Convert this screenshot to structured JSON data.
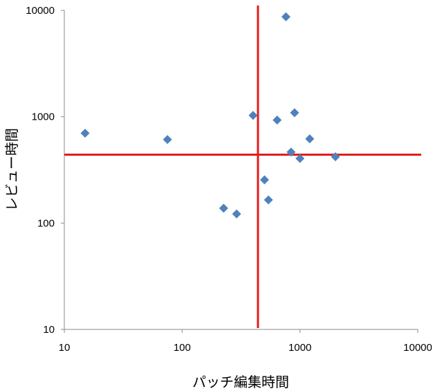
{
  "chart_data": {
    "type": "scatter",
    "xlabel": "パッチ編集時間",
    "ylabel": "レビュー時間",
    "x_scale": "log",
    "y_scale": "log",
    "xlim": [
      10,
      10000
    ],
    "ylim": [
      10,
      10000
    ],
    "x_ticks": [
      "10",
      "100",
      "1000",
      "10000"
    ],
    "y_ticks": [
      "10",
      "100",
      "1000",
      "10000"
    ],
    "grid": false,
    "marker": "diamond",
    "marker_color": "#4f81bd",
    "reference_line_color": "#e31b1b",
    "reference_lines": {
      "x": 440,
      "y": 440
    },
    "points": [
      {
        "x": 15,
        "y": 700
      },
      {
        "x": 75,
        "y": 610
      },
      {
        "x": 225,
        "y": 138
      },
      {
        "x": 290,
        "y": 122
      },
      {
        "x": 400,
        "y": 1030
      },
      {
        "x": 500,
        "y": 255
      },
      {
        "x": 540,
        "y": 165
      },
      {
        "x": 640,
        "y": 930
      },
      {
        "x": 760,
        "y": 8700
      },
      {
        "x": 840,
        "y": 465
      },
      {
        "x": 900,
        "y": 1090
      },
      {
        "x": 1000,
        "y": 405
      },
      {
        "x": 1210,
        "y": 620
      },
      {
        "x": 2000,
        "y": 420
      }
    ]
  }
}
